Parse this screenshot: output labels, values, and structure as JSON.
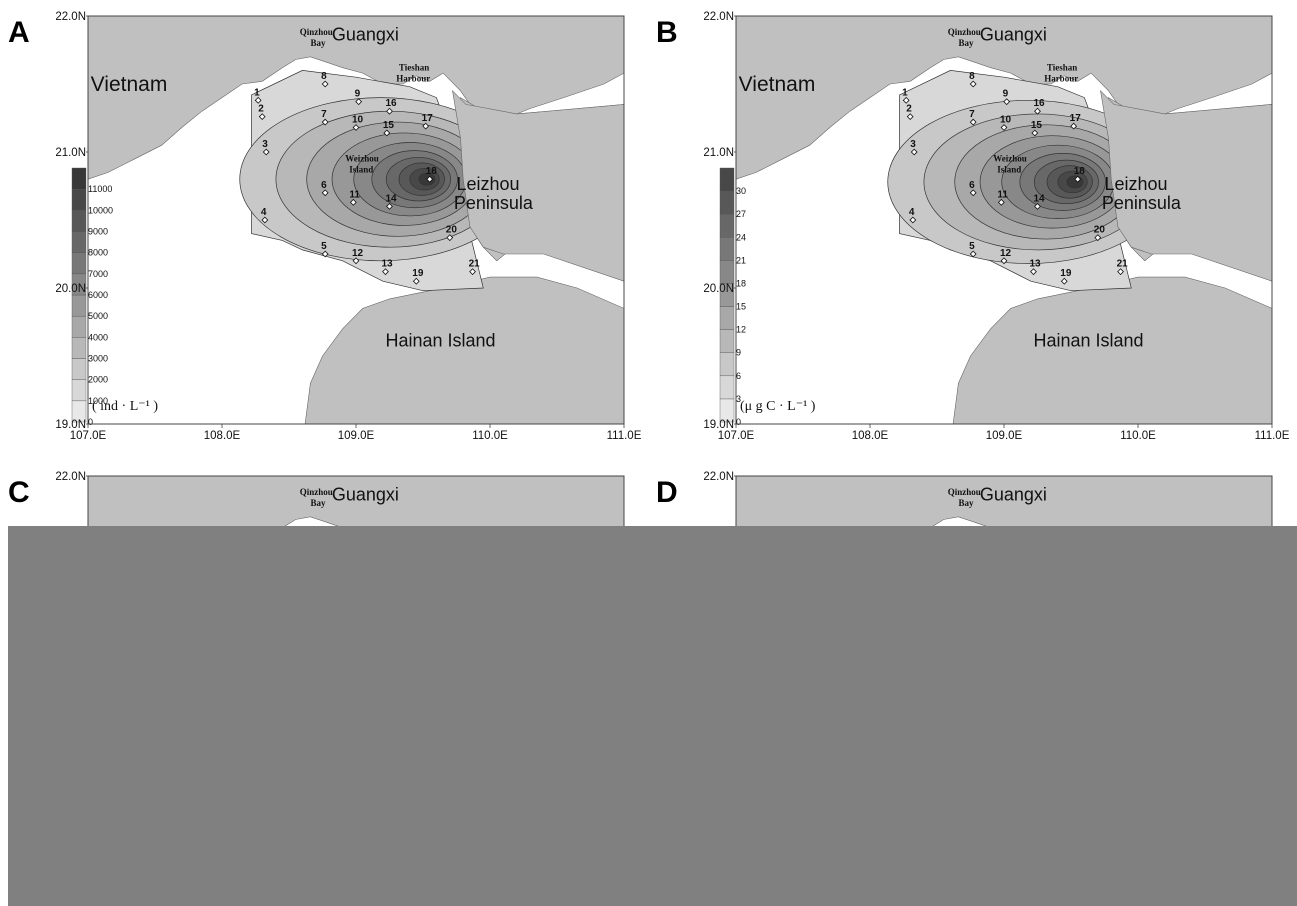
{
  "panels": [
    {
      "letter": "A",
      "show_colorbar": true,
      "legend_ticks": [
        "0",
        "1000",
        "2000",
        "3000",
        "4000",
        "5000",
        "6000",
        "7000",
        "8000",
        "9000",
        "10000",
        "11000"
      ],
      "legend_unit": "( ind · L⁻¹ )",
      "peak": [
        109.55,
        20.8
      ]
    },
    {
      "letter": "B",
      "show_colorbar": true,
      "legend_ticks": [
        "0",
        "3",
        "6",
        "9",
        "12",
        "15",
        "18",
        "21",
        "24",
        "27",
        "30"
      ],
      "legend_unit": "(μ g C · L⁻¹ )",
      "peak": [
        109.55,
        20.78
      ]
    },
    {
      "letter": "C",
      "show_colorbar": false
    },
    {
      "letter": "D",
      "show_colorbar": false
    }
  ],
  "axes": {
    "x_ticks": [
      "107.0E",
      "108.0E",
      "109.0E",
      "110.0E",
      "111.0E"
    ],
    "y_ticks": [
      "22.0N",
      "21.0N",
      "20.0N",
      "19.0N"
    ],
    "x_values": [
      107,
      108,
      109,
      110,
      111
    ],
    "y_values": [
      22,
      21,
      20,
      19
    ],
    "lon_range": [
      107,
      111
    ],
    "lat_range": [
      19,
      22
    ]
  },
  "places": {
    "vietnam": "Vietnam",
    "guangxi": "Guangxi",
    "qinzhou_1": "Qinzhou",
    "qinzhou_2": "Bay",
    "tieshan_1": "Tieshan",
    "tieshan_2": "Harbour",
    "weizhou_1": "Weizhou",
    "weizhou_2": "Island",
    "leizhou_1": "Leizhou",
    "leizhou_2": "Peninsula",
    "hainan": "Hainan Island"
  },
  "stations": [
    {
      "id": "1",
      "lon": 108.27,
      "lat": 21.38
    },
    {
      "id": "2",
      "lon": 108.3,
      "lat": 21.26
    },
    {
      "id": "3",
      "lon": 108.33,
      "lat": 21.0
    },
    {
      "id": "4",
      "lon": 108.32,
      "lat": 20.5
    },
    {
      "id": "5",
      "lon": 108.77,
      "lat": 20.25
    },
    {
      "id": "6",
      "lon": 108.77,
      "lat": 20.7
    },
    {
      "id": "7",
      "lon": 108.77,
      "lat": 21.22
    },
    {
      "id": "8",
      "lon": 108.77,
      "lat": 21.5
    },
    {
      "id": "9",
      "lon": 109.02,
      "lat": 21.37
    },
    {
      "id": "10",
      "lon": 109.0,
      "lat": 21.18
    },
    {
      "id": "11",
      "lon": 108.98,
      "lat": 20.63
    },
    {
      "id": "12",
      "lon": 109.0,
      "lat": 20.2
    },
    {
      "id": "13",
      "lon": 109.22,
      "lat": 20.12
    },
    {
      "id": "14",
      "lon": 109.25,
      "lat": 20.6
    },
    {
      "id": "15",
      "lon": 109.23,
      "lat": 21.14
    },
    {
      "id": "16",
      "lon": 109.25,
      "lat": 21.3
    },
    {
      "id": "17",
      "lon": 109.52,
      "lat": 21.19
    },
    {
      "id": "18",
      "lon": 109.55,
      "lat": 20.8
    },
    {
      "id": "19",
      "lon": 109.45,
      "lat": 20.05
    },
    {
      "id": "20",
      "lon": 109.7,
      "lat": 20.37
    },
    {
      "id": "21",
      "lon": 109.87,
      "lat": 20.12
    }
  ],
  "colors": {
    "land": "#c0c0c0",
    "water": "#ffffff",
    "contour_levels": [
      "#e8e8e8",
      "#d8d8d8",
      "#c8c8c8",
      "#b8b8b8",
      "#a8a8a8",
      "#989898",
      "#888888",
      "#787878",
      "#686868",
      "#585858",
      "#484848",
      "#383838"
    ],
    "overlay": "#808080"
  }
}
